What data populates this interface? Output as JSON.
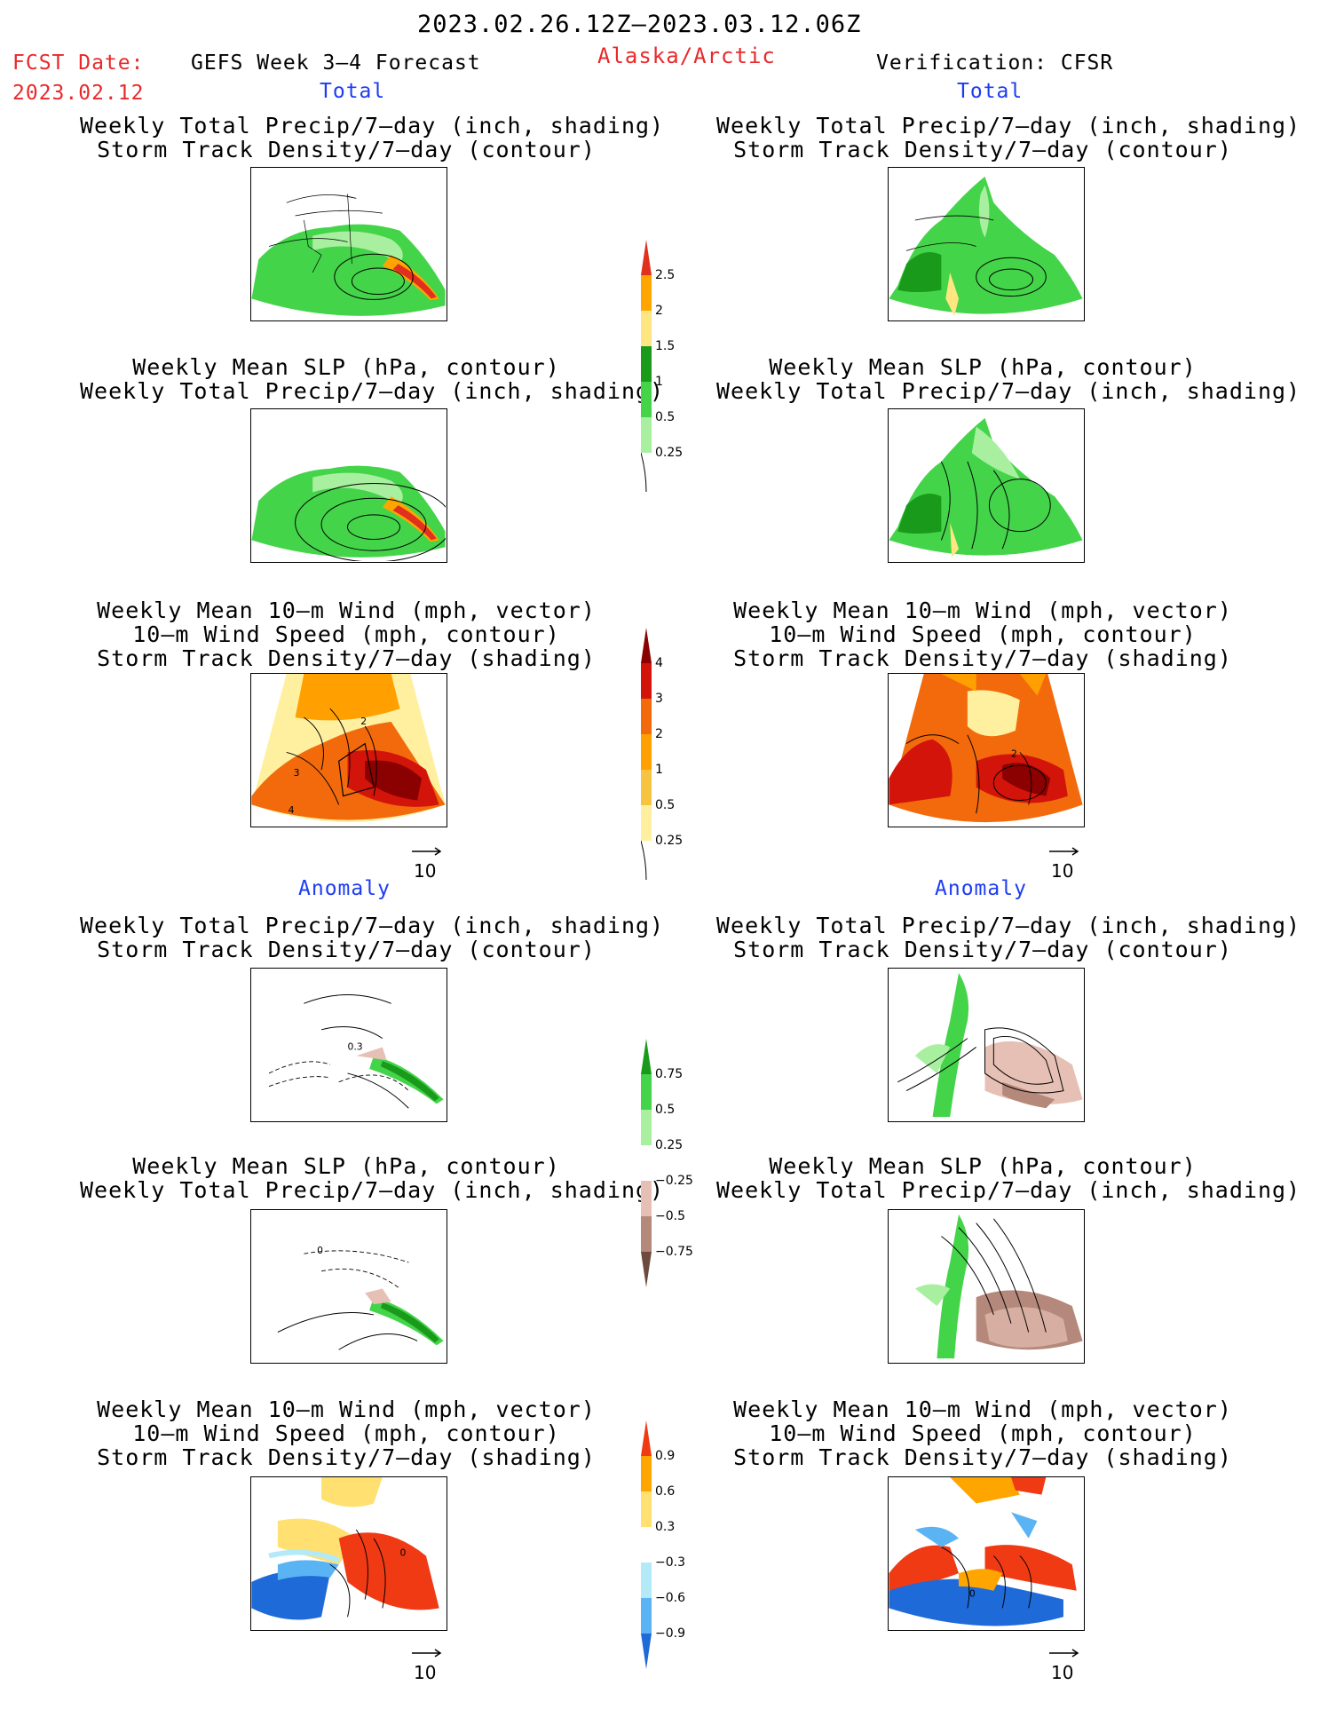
{
  "header": {
    "date_range": "2023.02.26.12Z–2023.03.12.06Z",
    "fcst_label": "FCST Date:",
    "fcst_date": "2023.02.12",
    "model_title": "GEFS Week 3–4 Forecast",
    "region": "Alaska/Arctic",
    "verification": "Verification: CFSR"
  },
  "sections": {
    "total": "Total",
    "anomaly": "Anomaly"
  },
  "panel_titles": {
    "precip_storm": [
      "Weekly Total Precip/7–day (inch, shading)",
      "Storm Track Density/7–day (contour)"
    ],
    "slp_precip": [
      "Weekly Mean SLP (hPa, contour)",
      "Weekly Total Precip/7–day (inch, shading)"
    ],
    "wind_storm": [
      "Weekly Mean 10–m Wind (mph, vector)",
      "10–m Wind Speed (mph, contour)",
      "Storm Track Density/7–day (shading)"
    ]
  },
  "vector_scale": "10",
  "colorbars": {
    "precip_total": {
      "labels": [
        "2.5",
        "2",
        "1.5",
        "1",
        "0.5",
        "0.25"
      ],
      "colors": [
        "#e0301e",
        "#ffa500",
        "#ffe680",
        "#1a9a1a",
        "#44d44a",
        "#a8f0a0"
      ]
    },
    "storm_total": {
      "labels": [
        "4",
        "3",
        "2",
        "1",
        "0.5",
        "0.25"
      ],
      "colors": [
        "#8b0000",
        "#d2140a",
        "#f26a0c",
        "#ffa000",
        "#f6c440",
        "#fff0a0"
      ]
    },
    "precip_anom": {
      "labels": [
        "0.75",
        "0.5",
        "0.25",
        "−0.25",
        "−0.5",
        "−0.75"
      ],
      "colors": [
        "#1a9a1a",
        "#44d44a",
        "#a8f0a0",
        "#ffffff",
        "#e6c0b4",
        "#b4887a",
        "#6e4a3e"
      ]
    },
    "storm_anom": {
      "labels": [
        "0.9",
        "0.6",
        "0.3",
        "−0.3",
        "−0.6",
        "−0.9"
      ],
      "colors": [
        "#f03a14",
        "#ffa500",
        "#ffe070",
        "#ffffff",
        "#b4eaf8",
        "#5ab4f4",
        "#1e6ad8"
      ]
    }
  },
  "contour_labels": {
    "gefs_wind_total": [
      "2",
      "3",
      "4"
    ],
    "cfsr_wind_total": [
      "2"
    ],
    "gefs_precip_anom": [
      "0.3"
    ],
    "gefs_slp_anom": [
      "0"
    ],
    "gefs_wind_anom": [
      "0"
    ],
    "cfsr_wind_anom": [
      "0"
    ]
  }
}
